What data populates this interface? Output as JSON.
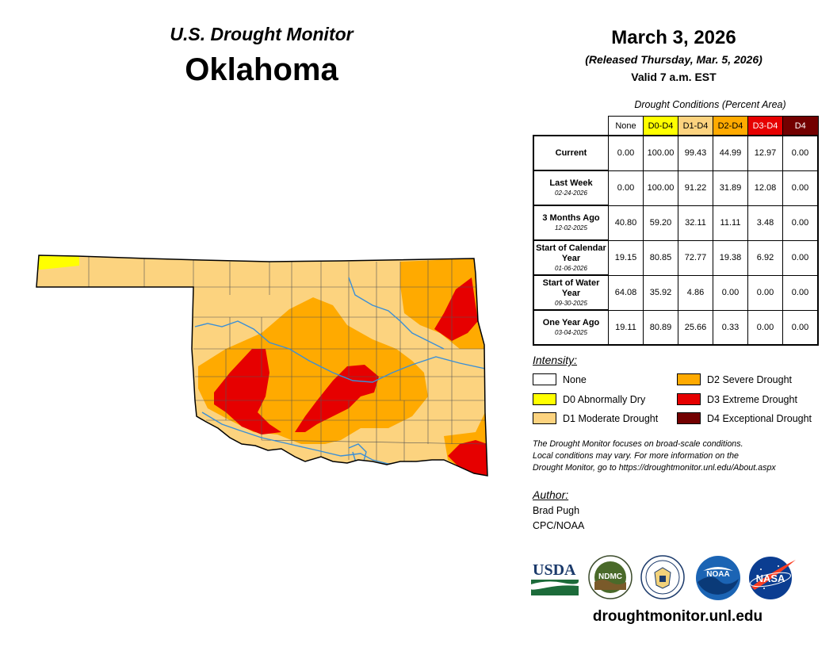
{
  "header": {
    "monitor_title": "U.S. Drought Monitor",
    "state": "Oklahoma"
  },
  "date_block": {
    "date": "March 3, 2026",
    "released": "(Released Thursday, Mar. 5, 2026)",
    "valid": "Valid 7 a.m. EST"
  },
  "table": {
    "title": "Drought Conditions (Percent Area)",
    "columns": [
      {
        "label": "None",
        "bg": "#ffffff",
        "fg": "#000000"
      },
      {
        "label": "D0-D4",
        "bg": "#ffff00",
        "fg": "#000000"
      },
      {
        "label": "D1-D4",
        "bg": "#fcd37f",
        "fg": "#000000"
      },
      {
        "label": "D2-D4",
        "bg": "#ffaa00",
        "fg": "#000000"
      },
      {
        "label": "D3-D4",
        "bg": "#e60000",
        "fg": "#ffffff"
      },
      {
        "label": "D4",
        "bg": "#730000",
        "fg": "#ffffff"
      }
    ],
    "rows": [
      {
        "label": "Current",
        "date": "",
        "values": [
          "0.00",
          "100.00",
          "99.43",
          "44.99",
          "12.97",
          "0.00"
        ]
      },
      {
        "label": "Last Week",
        "date": "02-24-2026",
        "values": [
          "0.00",
          "100.00",
          "91.22",
          "31.89",
          "12.08",
          "0.00"
        ]
      },
      {
        "label": "3 Months Ago",
        "date": "12-02-2025",
        "values": [
          "40.80",
          "59.20",
          "32.11",
          "11.11",
          "3.48",
          "0.00"
        ]
      },
      {
        "label": "Start of Calendar Year",
        "date": "01-06-2026",
        "values": [
          "19.15",
          "80.85",
          "72.77",
          "19.38",
          "6.92",
          "0.00"
        ]
      },
      {
        "label": "Start of Water Year",
        "date": "09-30-2025",
        "values": [
          "64.08",
          "35.92",
          "4.86",
          "0.00",
          "0.00",
          "0.00"
        ]
      },
      {
        "label": "One Year Ago",
        "date": "03-04-2025",
        "values": [
          "19.11",
          "80.89",
          "25.66",
          "0.33",
          "0.00",
          "0.00"
        ]
      }
    ]
  },
  "legend": {
    "title": "Intensity:",
    "items": [
      {
        "label": "None",
        "color": "#ffffff"
      },
      {
        "label": "D0 Abnormally Dry",
        "color": "#ffff00"
      },
      {
        "label": "D1 Moderate Drought",
        "color": "#fcd37f"
      },
      {
        "label": "D2 Severe Drought",
        "color": "#ffaa00"
      },
      {
        "label": "D3 Extreme Drought",
        "color": "#e60000"
      },
      {
        "label": "D4 Exceptional Drought",
        "color": "#730000"
      }
    ]
  },
  "note": {
    "line1": "The Drought Monitor focuses on broad-scale conditions.",
    "line2": "Local conditions may vary. For more information on the",
    "line3": "Drought Monitor, go to https://droughtmonitor.unl.edu/About.aspx"
  },
  "author": {
    "title": "Author:",
    "name": "Brad Pugh",
    "org": "CPC/NOAA"
  },
  "logos": {
    "usda": "USDA",
    "ndmc": "NDMC",
    "noaa": "NOAA",
    "nasa": "NASA"
  },
  "website": "droughtmonitor.unl.edu",
  "map_colors": {
    "d0": "#ffff00",
    "d1": "#fcd37f",
    "d2": "#ffaa00",
    "d3": "#e60000",
    "river": "#3b8fd6",
    "border": "#000000"
  }
}
